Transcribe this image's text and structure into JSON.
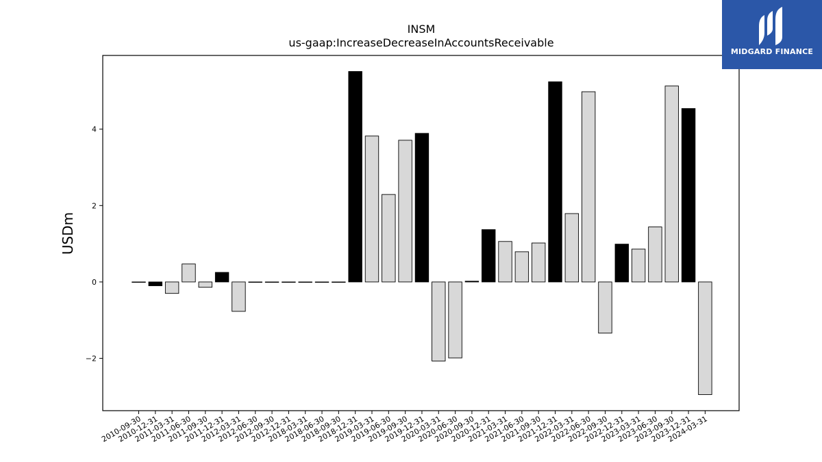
{
  "chart_data": {
    "type": "bar",
    "title": "INSM",
    "subtitle": "us-gaap:IncreaseDecreaseInAccountsReceivable",
    "xlabel": "",
    "ylabel": "USDm",
    "ylim": [
      -3.37,
      5.93
    ],
    "yticks": [
      -2,
      0,
      2,
      4
    ],
    "ytick_labels": [
      "−2",
      "0",
      "2",
      "4"
    ],
    "grid": false,
    "categories": [
      "2010-09-30",
      "2010-12-31",
      "2011-03-31",
      "2011-06-30",
      "2011-09-30",
      "2011-12-31",
      "2012-03-31",
      "2012-06-30",
      "2012-09-30",
      "2012-12-31",
      "2018-03-31",
      "2018-06-30",
      "2018-09-30",
      "2018-12-31",
      "2019-03-31",
      "2019-06-30",
      "2019-09-30",
      "2019-12-31",
      "2020-03-31",
      "2020-06-30",
      "2020-09-30",
      "2020-12-31",
      "2021-03-31",
      "2021-06-30",
      "2021-09-30",
      "2021-12-31",
      "2022-03-31",
      "2022-06-30",
      "2022-09-30",
      "2022-12-31",
      "2023-03-31",
      "2023-06-30",
      "2023-09-30",
      "2023-12-31",
      "2024-03-31"
    ],
    "values": [
      0.0,
      -0.1,
      -0.3,
      0.47,
      -0.14,
      0.25,
      -0.77,
      0.0,
      0.0,
      0.0,
      0.0,
      0.0,
      0.0,
      5.51,
      3.82,
      2.29,
      3.71,
      3.89,
      -2.07,
      -1.99,
      0.02,
      1.37,
      1.06,
      0.79,
      1.02,
      5.24,
      1.79,
      4.98,
      -1.34,
      0.99,
      0.86,
      1.44,
      5.13,
      4.54,
      -2.95
    ],
    "bar_fill": [
      "#d8d8d8",
      "#000000",
      "#d8d8d8",
      "#d8d8d8",
      "#d8d8d8",
      "#000000",
      "#d8d8d8",
      "#d8d8d8",
      "#d8d8d8",
      "#d8d8d8",
      "#d8d8d8",
      "#d8d8d8",
      "#000000",
      "#000000",
      "#d8d8d8",
      "#d8d8d8",
      "#d8d8d8",
      "#000000",
      "#d8d8d8",
      "#d8d8d8",
      "#000000",
      "#000000",
      "#d8d8d8",
      "#d8d8d8",
      "#d8d8d8",
      "#000000",
      "#d8d8d8",
      "#d8d8d8",
      "#d8d8d8",
      "#000000",
      "#d8d8d8",
      "#d8d8d8",
      "#d8d8d8",
      "#000000",
      "#d8d8d8"
    ]
  },
  "logo": {
    "text": "MIDGARD FINANCE",
    "background": "#2b57a8",
    "icon": "midgard-m-icon"
  }
}
